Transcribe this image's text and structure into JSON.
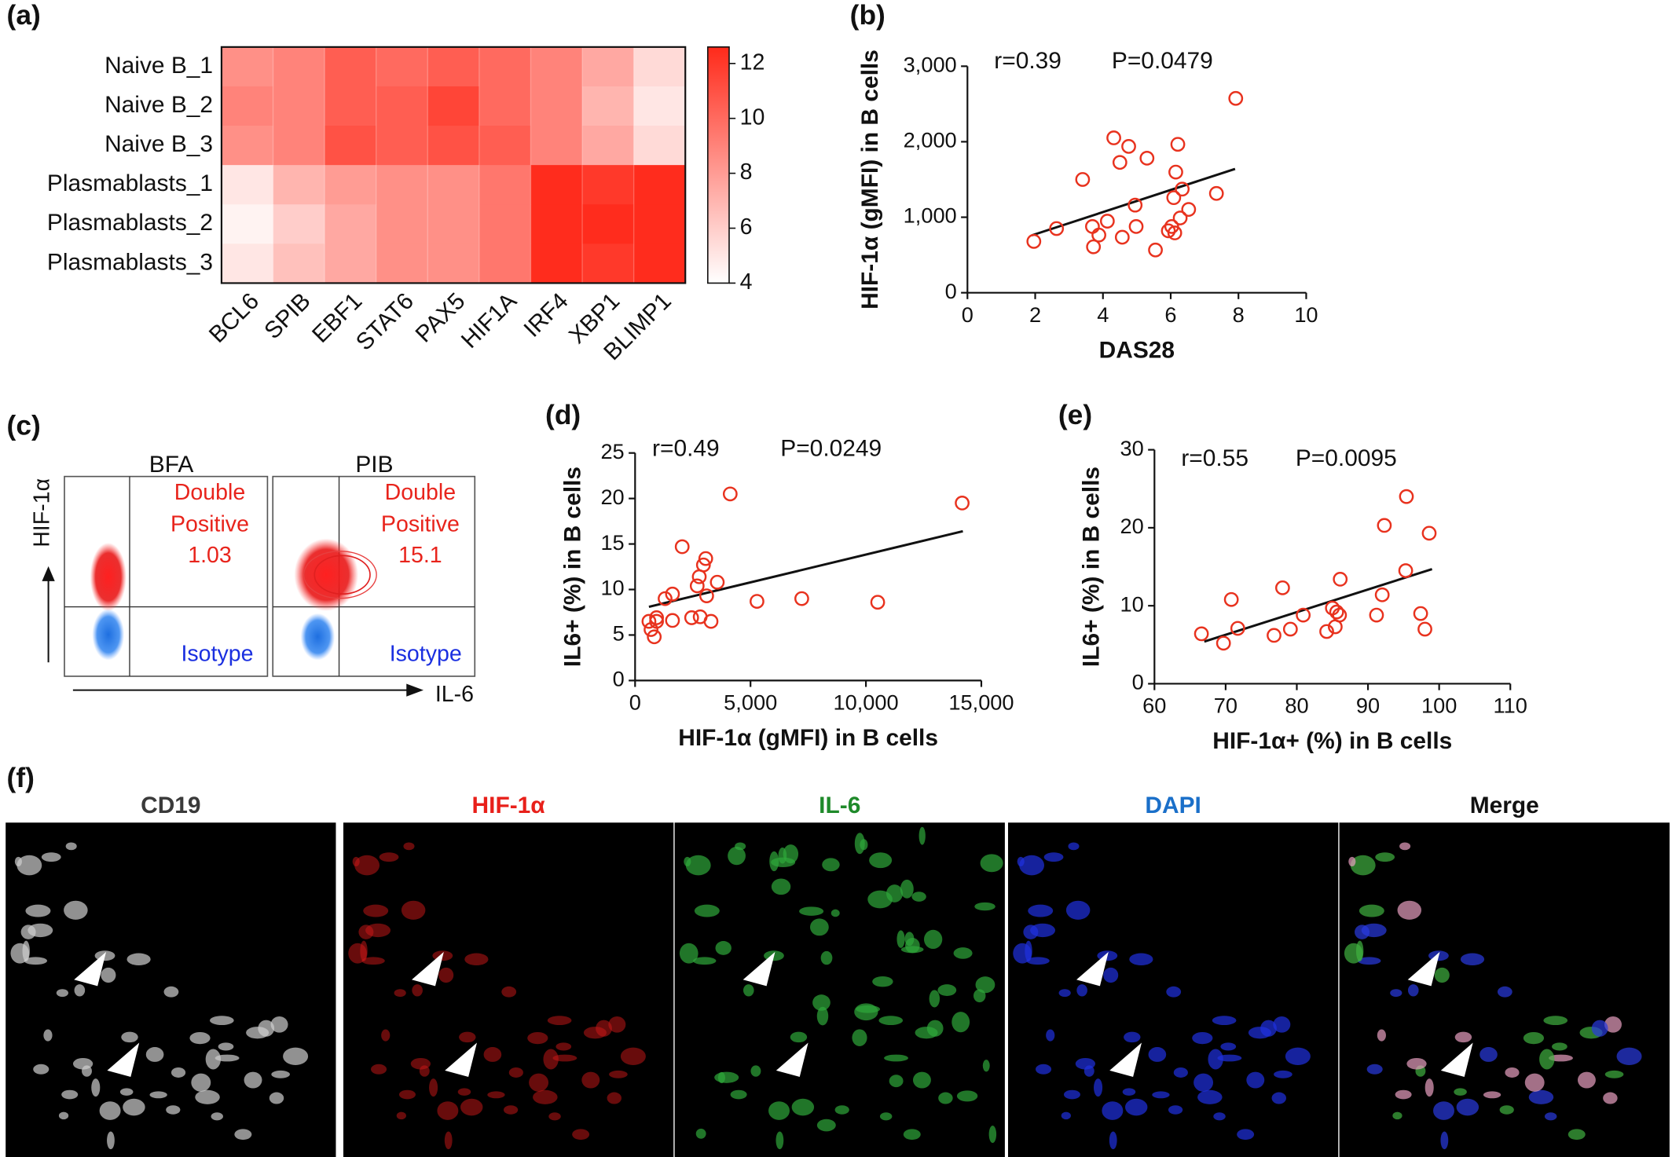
{
  "panel_labels": [
    "(a)",
    "(b)",
    "(c)",
    "(d)",
    "(e)",
    "(f)"
  ],
  "chart_data": [
    {
      "type": "heatmap",
      "rows": [
        "Naive B_1",
        "Naive B_2",
        "Naive B_3",
        "Plasmablasts_1",
        "Plasmablasts_2",
        "Plasmablasts_3"
      ],
      "columns": [
        "BCL6",
        "SPIB",
        "EBF1",
        "STAT6",
        "PAX5",
        "HIF1A",
        "IRF4",
        "XBP1",
        "BLIMP1"
      ],
      "values": [
        [
          8.5,
          9,
          10.5,
          10,
          10.5,
          10,
          9,
          7.5,
          5.5
        ],
        [
          9,
          9,
          10.5,
          10.5,
          11.5,
          10,
          9,
          7,
          5
        ],
        [
          8.5,
          9,
          11,
          10.5,
          11,
          10.5,
          9,
          7.5,
          5.5
        ],
        [
          5,
          7,
          8,
          8.5,
          8.5,
          9.5,
          12.5,
          12,
          12.5
        ],
        [
          4.5,
          6,
          7.5,
          8.5,
          8.5,
          9.5,
          12.5,
          12.5,
          12.5
        ],
        [
          5,
          6.5,
          7.5,
          8.5,
          8.5,
          9.5,
          12.5,
          12,
          12.5
        ]
      ],
      "clim": [
        4,
        12.6
      ],
      "cticks": [
        4,
        6,
        8,
        10,
        12
      ],
      "colormap": [
        "#ffffff",
        "#ff2a1a"
      ]
    },
    {
      "type": "scatter",
      "annotations": [
        "r=0.39",
        "P=0.0479"
      ],
      "x_label": "DAS28",
      "y_label": "HIF-1α (gMFI) in B cells",
      "color": "#e8321e",
      "x": [
        1.96,
        2.63,
        3.4,
        3.69,
        3.72,
        3.88,
        4.13,
        4.32,
        4.5,
        4.57,
        4.76,
        4.95,
        4.98,
        5.3,
        5.55,
        5.93,
        6.03,
        6.12,
        6.15,
        6.21,
        6.09,
        6.34,
        6.28,
        6.53,
        7.35,
        7.92
      ],
      "y": [
        680,
        850,
        1500,
        877,
        608,
        764,
        948,
        2051,
        1726,
        735,
        1938,
        1160,
        877,
        1782,
        566,
        820,
        877,
        792,
        1598,
        1966,
        1259,
        1372,
        990,
        1103,
        1315,
        2574
      ],
      "fit": {
        "x": [
          1.9,
          7.9
        ],
        "y": [
          760,
          1640
        ]
      },
      "xlim": [
        0,
        10
      ],
      "ylim": [
        0,
        3000
      ],
      "xticks": [
        0,
        2,
        4,
        6,
        8,
        10
      ],
      "yticks": [
        0,
        {
          "value": 1000,
          "label": "1,000"
        },
        {
          "value": 2000,
          "label": "2,000"
        },
        {
          "value": 3000,
          "label": "3,000"
        }
      ]
    },
    {
      "type": "scatter",
      "annotations": [
        "r=0.49",
        "P=0.0249"
      ],
      "x_label": "HIF-1α (gMFI) in B cells",
      "y_label": "IL6+ (%) in B cells",
      "color": "#e8321e",
      "x": [
        600,
        830,
        690,
        930,
        930,
        1300,
        1620,
        1620,
        2040,
        2450,
        2690,
        2780,
        2960,
        3060,
        2820,
        3100,
        3290,
        3560,
        4120,
        5280,
        7220,
        10510,
        14170
      ],
      "y": [
        6.5,
        4.8,
        5.6,
        6.5,
        6.9,
        9.0,
        9.5,
        6.6,
        14.7,
        6.9,
        10.4,
        11.4,
        12.7,
        13.4,
        7.0,
        9.3,
        6.5,
        10.8,
        20.5,
        8.7,
        9.0,
        8.6,
        19.5
      ],
      "fit": {
        "x": [
          600,
          14200
        ],
        "y": [
          8.1,
          16.4
        ]
      },
      "xlim": [
        0,
        15000
      ],
      "ylim": [
        0,
        25
      ],
      "xticks": [
        0,
        {
          "value": 5000,
          "label": "5,000"
        },
        {
          "value": 10000,
          "label": "10,000"
        },
        {
          "value": 15000,
          "label": "15,000"
        }
      ],
      "yticks": [
        0,
        5,
        10,
        15,
        20,
        25
      ]
    },
    {
      "type": "scatter",
      "annotations": [
        "r=0.55",
        "P=0.0095"
      ],
      "x_label": "HIF-1α+ (%) in B cells",
      "y_label": "IL6+ (%) in B cells",
      "color": "#e8321e",
      "x": [
        66.6,
        69.7,
        70.8,
        71.7,
        76.8,
        78,
        79.1,
        80.9,
        84.2,
        85,
        85.4,
        85.6,
        86,
        86.1,
        91.2,
        92,
        92.3,
        95.3,
        95.4,
        97.4,
        98,
        98.6
      ],
      "y": [
        6.4,
        5.2,
        10.8,
        7.1,
        6.2,
        12.3,
        7.0,
        8.8,
        6.7,
        9.7,
        7.3,
        9.2,
        8.8,
        13.4,
        8.8,
        11.4,
        20.3,
        14.5,
        24.0,
        9.0,
        7.0,
        19.3
      ],
      "fit": {
        "x": [
          67,
          99
        ],
        "y": [
          5.4,
          14.7
        ]
      },
      "xlim": [
        60,
        110
      ],
      "ylim": [
        0,
        30
      ],
      "xticks": [
        60,
        70,
        80,
        90,
        100,
        110
      ],
      "yticks": [
        0,
        10,
        20,
        30
      ]
    }
  ],
  "flow_panel": {
    "columns": [
      "BFA",
      "PIB"
    ],
    "y_axis": "HIF-1α",
    "x_axis": "IL-6",
    "gates": [
      {
        "label_lines": [
          "Double",
          "Positive"
        ],
        "value": "1.03",
        "isotype": "Isotype"
      },
      {
        "label_lines": [
          "Double",
          "Positive"
        ],
        "value": "15.1",
        "isotype": "Isotype"
      }
    ]
  },
  "image_panel": {
    "channels": [
      "CD19",
      "HIF-1α",
      "IL-6",
      "DAPI",
      "Merge"
    ]
  }
}
